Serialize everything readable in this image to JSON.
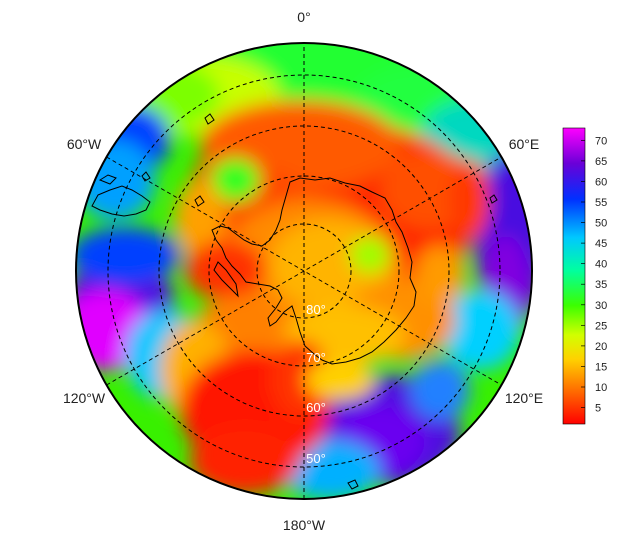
{
  "map": {
    "projection": "south-polar-stereographic",
    "longitude_labels": [
      {
        "text": "0°",
        "lon": 0
      },
      {
        "text": "60°E",
        "lon": 60
      },
      {
        "text": "120°E",
        "lon": 120
      },
      {
        "text": "180°W",
        "lon": 180
      },
      {
        "text": "120°W",
        "lon": -120
      },
      {
        "text": "60°W",
        "lon": -60
      }
    ],
    "latitude_labels": [
      {
        "text": "80°",
        "lat": -80
      },
      {
        "text": "70°",
        "lat": -70
      },
      {
        "text": "60°",
        "lat": -60
      },
      {
        "text": "50°",
        "lat": -50
      }
    ],
    "grid_style": "dashed"
  },
  "colorbar": {
    "ticks": [
      "70",
      "65",
      "60",
      "55",
      "50",
      "45",
      "40",
      "35",
      "30",
      "25",
      "20",
      "15",
      "10",
      "5"
    ],
    "range": [
      1,
      73
    ],
    "colors": [
      "#ff0000",
      "#ff6a00",
      "#ffd200",
      "#d2ff00",
      "#3cff00",
      "#00ffa0",
      "#00c8ff",
      "#0030ff",
      "#6a00d8",
      "#ff00ff"
    ]
  }
}
